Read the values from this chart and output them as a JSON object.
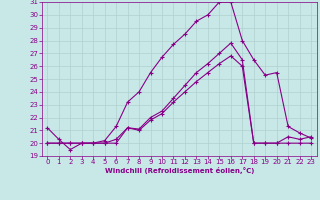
{
  "title": "",
  "xlabel": "Windchill (Refroidissement éolien,°C)",
  "background_color": "#c8e8e8",
  "grid_color": "#b0d0d0",
  "line_color": "#880088",
  "xlim": [
    -0.5,
    23.5
  ],
  "ylim": [
    19,
    31
  ],
  "yticks": [
    19,
    20,
    21,
    22,
    23,
    24,
    25,
    26,
    27,
    28,
    29,
    30,
    31
  ],
  "xticks": [
    0,
    1,
    2,
    3,
    4,
    5,
    6,
    7,
    8,
    9,
    10,
    11,
    12,
    13,
    14,
    15,
    16,
    17,
    18,
    19,
    20,
    21,
    22,
    23
  ],
  "line1_x": [
    0,
    1,
    2,
    3,
    4,
    5,
    6,
    7,
    8,
    9,
    10,
    11,
    12,
    13,
    14,
    15,
    16,
    17,
    18,
    19,
    20,
    21,
    22,
    23
  ],
  "line1_y": [
    21.2,
    20.3,
    19.5,
    20.0,
    20.0,
    20.2,
    21.3,
    23.2,
    24.0,
    25.5,
    26.7,
    27.7,
    28.5,
    29.5,
    30.0,
    31.0,
    31.0,
    28.0,
    26.5,
    25.3,
    25.5,
    21.3,
    20.8,
    20.4
  ],
  "line2_x": [
    0,
    1,
    2,
    3,
    4,
    5,
    6,
    7,
    8,
    9,
    10,
    11,
    12,
    13,
    14,
    15,
    16,
    17,
    18,
    19,
    20,
    21,
    22,
    23
  ],
  "line2_y": [
    20.0,
    20.0,
    20.0,
    20.0,
    20.0,
    20.0,
    20.0,
    21.2,
    21.1,
    22.0,
    22.5,
    23.5,
    24.5,
    25.5,
    26.2,
    27.0,
    27.8,
    26.5,
    20.0,
    20.0,
    20.0,
    20.0,
    20.0,
    20.0
  ],
  "line3_x": [
    0,
    1,
    2,
    3,
    4,
    5,
    6,
    7,
    8,
    9,
    10,
    11,
    12,
    13,
    14,
    15,
    16,
    17,
    18,
    19,
    20,
    21,
    22,
    23
  ],
  "line3_y": [
    20.0,
    20.0,
    20.0,
    20.0,
    20.0,
    20.0,
    20.3,
    21.2,
    21.0,
    21.8,
    22.3,
    23.2,
    24.0,
    24.8,
    25.5,
    26.2,
    26.8,
    26.0,
    20.0,
    20.0,
    20.0,
    20.5,
    20.3,
    20.5
  ],
  "tick_fontsize": 5,
  "xlabel_fontsize": 5,
  "xlabel_fontweight": "bold"
}
